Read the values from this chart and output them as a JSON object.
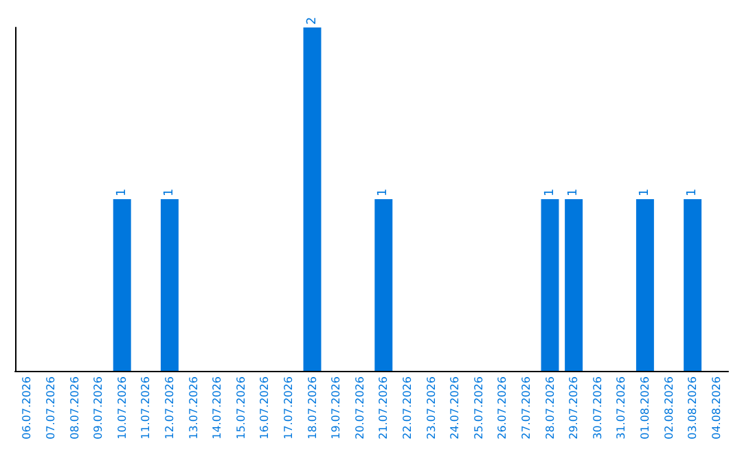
{
  "chart_data": {
    "type": "bar",
    "categories": [
      "06.07.2026",
      "07.07.2026",
      "08.07.2026",
      "09.07.2026",
      "10.07.2026",
      "11.07.2026",
      "12.07.2026",
      "13.07.2026",
      "14.07.2026",
      "15.07.2026",
      "16.07.2026",
      "17.07.2026",
      "18.07.2026",
      "19.07.2026",
      "20.07.2026",
      "21.07.2026",
      "22.07.2026",
      "23.07.2026",
      "24.07.2026",
      "25.07.2026",
      "26.07.2026",
      "27.07.2026",
      "28.07.2026",
      "29.07.2026",
      "30.07.2026",
      "31.07.2026",
      "01.08.2026",
      "02.08.2026",
      "03.08.2026",
      "04.08.2026"
    ],
    "values": [
      0,
      0,
      0,
      0,
      1,
      0,
      1,
      0,
      0,
      0,
      0,
      0,
      2,
      0,
      0,
      1,
      0,
      0,
      0,
      0,
      0,
      0,
      1,
      1,
      0,
      0,
      1,
      0,
      1,
      0
    ],
    "value_labels": [
      null,
      null,
      null,
      null,
      "1",
      null,
      "1",
      null,
      null,
      null,
      null,
      null,
      "2",
      null,
      null,
      "1",
      null,
      null,
      null,
      null,
      null,
      null,
      "1",
      "1",
      null,
      null,
      "1",
      null,
      "1",
      null
    ],
    "color": "#0077dd",
    "tick_labels": "x",
    "grid": false
  }
}
